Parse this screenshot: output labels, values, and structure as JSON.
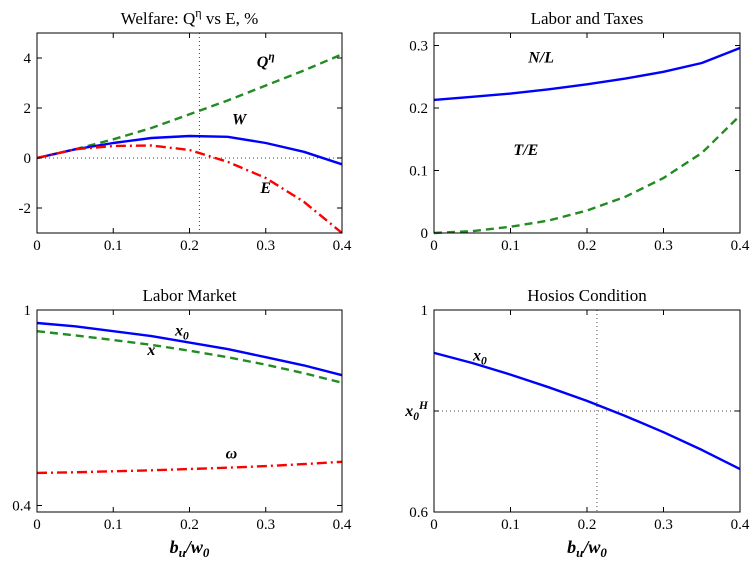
{
  "chart_data": [
    {
      "type": "line",
      "title": "Welfare: Q^η vs E, %",
      "xlabel": "",
      "ylabel": "",
      "xlim": [
        0,
        0.4
      ],
      "ylim": [
        -3,
        5
      ],
      "xticks": [
        "0",
        "0.1",
        "0.2",
        "0.3",
        "0.4"
      ],
      "yticks": [
        {
          "value": -2,
          "label": "-2"
        },
        {
          "value": 0,
          "label": "0"
        },
        {
          "value": 2,
          "label": "2"
        },
        {
          "value": 4,
          "label": "4"
        }
      ],
      "grid": false,
      "refs": {
        "vline": 0.213,
        "hline": 0
      },
      "series": [
        {
          "name": "Q^η",
          "color": "#228b22",
          "style": "dashed",
          "x": [
            0,
            0.05,
            0.1,
            0.15,
            0.2,
            0.25,
            0.3,
            0.35,
            0.4
          ],
          "y": [
            0,
            0.35,
            0.75,
            1.2,
            1.75,
            2.3,
            2.9,
            3.5,
            4.15
          ]
        },
        {
          "name": "W",
          "color": "#0000ff",
          "style": "solid",
          "x": [
            0,
            0.05,
            0.1,
            0.15,
            0.2,
            0.25,
            0.3,
            0.35,
            0.4
          ],
          "y": [
            0,
            0.35,
            0.6,
            0.8,
            0.88,
            0.85,
            0.6,
            0.25,
            -0.25
          ]
        },
        {
          "name": "E",
          "color": "#ff0000",
          "style": "dashdot",
          "x": [
            0,
            0.05,
            0.1,
            0.15,
            0.2,
            0.25,
            0.3,
            0.35,
            0.4
          ],
          "y": [
            0,
            0.35,
            0.48,
            0.5,
            0.32,
            -0.15,
            -0.8,
            -1.75,
            -3.0
          ]
        }
      ],
      "annotations": [
        {
          "text": "Q^η",
          "x": 0.3,
          "y": 3.65
        },
        {
          "text": "W",
          "x": 0.265,
          "y": 1.35
        },
        {
          "text": "E",
          "x": 0.3,
          "y": -1.4
        }
      ]
    },
    {
      "type": "line",
      "title": "Labor and Taxes",
      "xlabel": "",
      "ylabel": "",
      "xlim": [
        0,
        0.4
      ],
      "ylim": [
        0,
        0.32
      ],
      "xticks": [
        "0",
        "0.1",
        "0.2",
        "0.3",
        "0.4"
      ],
      "yticks": [
        {
          "value": 0,
          "label": "0"
        },
        {
          "value": 0.1,
          "label": "0.1"
        },
        {
          "value": 0.2,
          "label": "0.2"
        },
        {
          "value": 0.3,
          "label": "0.3"
        }
      ],
      "grid": false,
      "series": [
        {
          "name": "N/L",
          "color": "#0000ff",
          "style": "solid",
          "x": [
            0,
            0.05,
            0.1,
            0.15,
            0.2,
            0.25,
            0.3,
            0.35,
            0.4
          ],
          "y": [
            0.213,
            0.218,
            0.223,
            0.23,
            0.238,
            0.247,
            0.258,
            0.272,
            0.296
          ]
        },
        {
          "name": "T/E",
          "color": "#228b22",
          "style": "dashed",
          "x": [
            0,
            0.05,
            0.1,
            0.15,
            0.2,
            0.25,
            0.3,
            0.35,
            0.4
          ],
          "y": [
            0,
            0.003,
            0.01,
            0.02,
            0.036,
            0.058,
            0.088,
            0.128,
            0.188
          ]
        }
      ],
      "annotations": [
        {
          "text": "N/L",
          "x": 0.14,
          "y": 0.273
        },
        {
          "text": "T/E",
          "x": 0.12,
          "y": 0.125
        }
      ]
    },
    {
      "type": "line",
      "title": "Labor Market",
      "xlabel": "b_u/w_0",
      "ylabel": "",
      "xlim": [
        0,
        0.4
      ],
      "ylim": [
        0.38,
        1.0
      ],
      "xticks": [
        "0",
        "0.1",
        "0.2",
        "0.3",
        "0.4"
      ],
      "yticks": [
        {
          "value": 0.4,
          "label": "0.4"
        },
        {
          "value": 1.0,
          "label": "1"
        }
      ],
      "grid": false,
      "series": [
        {
          "name": "x_0",
          "color": "#0000ff",
          "style": "solid",
          "x": [
            0,
            0.05,
            0.1,
            0.15,
            0.2,
            0.25,
            0.3,
            0.35,
            0.4
          ],
          "y": [
            0.96,
            0.95,
            0.935,
            0.92,
            0.9,
            0.88,
            0.855,
            0.83,
            0.8
          ]
        },
        {
          "name": "x",
          "color": "#228b22",
          "style": "dashed",
          "x": [
            0,
            0.05,
            0.1,
            0.15,
            0.2,
            0.25,
            0.3,
            0.35,
            0.4
          ],
          "y": [
            0.935,
            0.922,
            0.908,
            0.893,
            0.875,
            0.855,
            0.832,
            0.806,
            0.777
          ]
        },
        {
          "name": "ω",
          "color": "#ff0000",
          "style": "dashdot",
          "x": [
            0,
            0.05,
            0.1,
            0.15,
            0.2,
            0.25,
            0.3,
            0.35,
            0.4
          ],
          "y": [
            0.5,
            0.502,
            0.505,
            0.508,
            0.512,
            0.516,
            0.521,
            0.527,
            0.534
          ]
        }
      ],
      "annotations": [
        {
          "text": "x_0",
          "x": 0.19,
          "y": 0.922
        },
        {
          "text": "x",
          "x": 0.15,
          "y": 0.862
        },
        {
          "text": "ω",
          "x": 0.255,
          "y": 0.544
        }
      ]
    },
    {
      "type": "line",
      "title": "Hosios Condition",
      "xlabel": "b_u/w_0",
      "ylabel": "",
      "xlim": [
        0,
        0.4
      ],
      "ylim": [
        0.6,
        1.0
      ],
      "xticks": [
        "0",
        "0.1",
        "0.2",
        "0.3",
        "0.4"
      ],
      "yticks": [
        {
          "value": 0.6,
          "label": "0.6"
        },
        {
          "value": 0.8,
          "label": "x_0^H"
        },
        {
          "value": 1.0,
          "label": "1"
        }
      ],
      "grid": false,
      "refs": {
        "vline": 0.213,
        "hline": 0.8
      },
      "series": [
        {
          "name": "x_0",
          "color": "#0000ff",
          "style": "solid",
          "x": [
            0,
            0.05,
            0.1,
            0.15,
            0.2,
            0.25,
            0.3,
            0.35,
            0.4
          ],
          "y": [
            0.915,
            0.895,
            0.872,
            0.847,
            0.82,
            0.79,
            0.758,
            0.723,
            0.685
          ]
        }
      ],
      "annotations": [
        {
          "text": "x_0",
          "x": 0.06,
          "y": 0.9
        }
      ]
    }
  ]
}
